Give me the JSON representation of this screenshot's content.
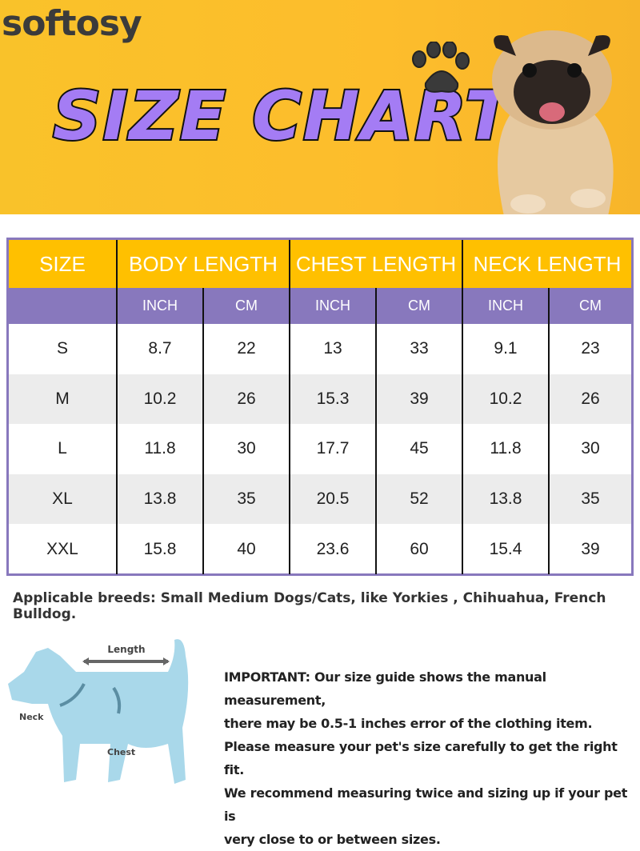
{
  "banner": {
    "brand": "softosy",
    "title": "SIZE CHART",
    "colors": {
      "background": "#fcc02c",
      "title": "#a47cf4"
    }
  },
  "table": {
    "headers": [
      "SIZE",
      "BODY LENGTH",
      "CHEST LENGTH",
      "NECK LENGTH"
    ],
    "subheaders": [
      "",
      "INCH",
      "CM",
      "INCH",
      "CM",
      "INCH",
      "CM"
    ],
    "rows": [
      [
        "S",
        "8.7",
        "22",
        "13",
        "33",
        "9.1",
        "23"
      ],
      [
        "M",
        "10.2",
        "26",
        "15.3",
        "39",
        "10.2",
        "26"
      ],
      [
        "L",
        "11.8",
        "30",
        "17.7",
        "45",
        "11.8",
        "30"
      ],
      [
        "XL",
        "13.8",
        "35",
        "20.5",
        "52",
        "13.8",
        "35"
      ],
      [
        "XXL",
        "15.8",
        "40",
        "23.6",
        "60",
        "15.4",
        "39"
      ]
    ],
    "colors": {
      "header": "#ffc000",
      "subheader": "#8878bd",
      "alt_row": "#ececec"
    }
  },
  "breeds": "Applicable breeds: Small Medium Dogs/Cats, like Yorkies , Chihuahua, French Bulldog.",
  "diagram": {
    "length": "Length",
    "neck": "Neck",
    "chest": "Chest"
  },
  "note": {
    "lines": [
      "IMPORTANT: Our size guide shows the manual measurement,",
      "there may be 0.5-1 inches error of the clothing item.",
      "Please measure your pet's size carefully to get the right fit.",
      "We recommend measuring twice and sizing up if your pet is",
      "very close to or between sizes."
    ]
  }
}
